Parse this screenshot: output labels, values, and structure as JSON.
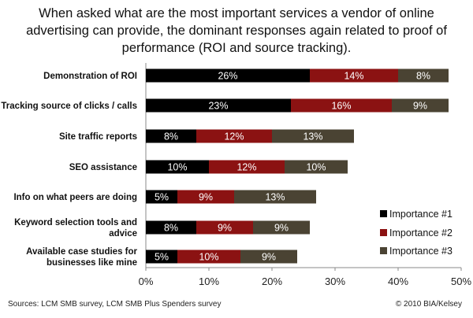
{
  "title_lines": [
    "When asked what are the most important services a vendor of online",
    "advertising can provide, the dominant responses again related to proof of",
    "performance (ROI and source tracking)."
  ],
  "footer": {
    "source": "Sources: LCM SMB survey, LCM SMB Plus Spenders survey",
    "copyright": "© 2010 BIA/Kelsey"
  },
  "colors": {
    "importance1": "#000000",
    "importance2": "#8b1212",
    "importance3": "#4a4333"
  },
  "chart_data": {
    "type": "bar",
    "orientation": "horizontal",
    "stacked": true,
    "categories": [
      [
        "Demonstration of ROI"
      ],
      [
        "Tracking source of clicks / calls"
      ],
      [
        "Site traffic reports"
      ],
      [
        "SEO assistance"
      ],
      [
        "Info on what peers are doing"
      ],
      [
        "Keyword selection tools and",
        "advice"
      ],
      [
        "Available case studies for",
        "businesses like mine"
      ]
    ],
    "series": [
      {
        "name": "Importance #1",
        "values": [
          26,
          23,
          8,
          10,
          5,
          8,
          5
        ],
        "labels": [
          "26%",
          "23%",
          "8%",
          "10%",
          "5%",
          "8%",
          "5%"
        ]
      },
      {
        "name": "Importance #2",
        "values": [
          14,
          16,
          12,
          12,
          9,
          9,
          10
        ],
        "labels": [
          "14%",
          "16%",
          "12%",
          "12%",
          "9%",
          "9%",
          "10%"
        ]
      },
      {
        "name": "Importance #3",
        "values": [
          8,
          9,
          13,
          10,
          13,
          9,
          9
        ],
        "labels": [
          "8%",
          "9%",
          "13%",
          "10%",
          "13%",
          "9%",
          "9%"
        ]
      }
    ],
    "xlim": [
      0,
      50
    ],
    "xticks": [
      "0%",
      "10%",
      "20%",
      "30%",
      "40%",
      "50%"
    ],
    "legend": "right",
    "grid": false
  }
}
